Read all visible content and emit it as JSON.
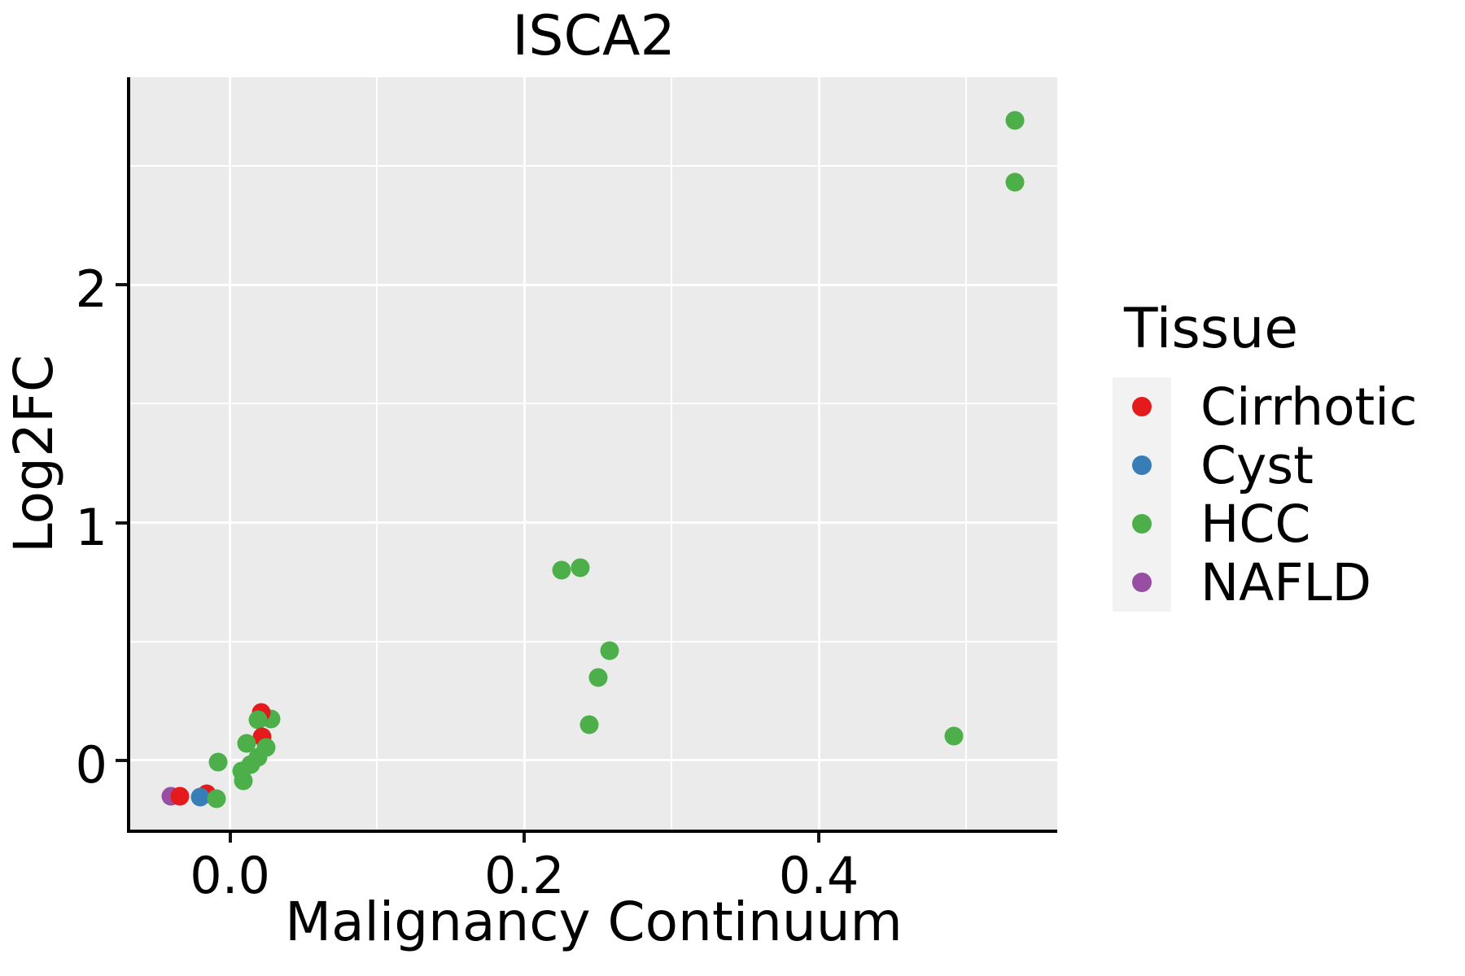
{
  "figure": {
    "title": "ISCA2"
  },
  "axes": {
    "x": {
      "label": "Malignancy Continuum",
      "min": -0.0678,
      "max": 0.562,
      "major_ticks": [
        {
          "value": 0.0,
          "label": "0.0"
        },
        {
          "value": 0.2,
          "label": "0.2"
        },
        {
          "value": 0.4,
          "label": "0.4"
        }
      ],
      "minor_gridlines": [
        0.1,
        0.3,
        0.5
      ]
    },
    "y": {
      "label": "Log2FC",
      "min": -0.2906,
      "max": 2.8718,
      "major_ticks": [
        {
          "value": 0,
          "label": "0"
        },
        {
          "value": 1,
          "label": "1"
        },
        {
          "value": 2,
          "label": "2"
        }
      ],
      "minor_gridlines": [
        0.5,
        1.5,
        2.5
      ]
    }
  },
  "legend": {
    "title": "Tissue",
    "entries": [
      {
        "label": "Cirrhotic",
        "color": "#E41A1C"
      },
      {
        "label": "Cyst",
        "color": "#377EB8"
      },
      {
        "label": "HCC",
        "color": "#4DAF4A"
      },
      {
        "label": "NAFLD",
        "color": "#984EA3"
      }
    ]
  },
  "style_colors": {
    "panel_background": "#EBEBEB",
    "gridline": "#FFFFFF",
    "legend_key_background": "#F2F2F2",
    "axis_line": "#000000"
  },
  "chart_data": {
    "type": "scatter",
    "title": "ISCA2",
    "xlabel": "Malignancy Continuum",
    "ylabel": "Log2FC",
    "xlim": [
      -0.0678,
      0.562
    ],
    "ylim": [
      -0.2906,
      2.8718
    ],
    "grid": "major-and-minor-white-on-gray",
    "legend_position": "right",
    "series_legend": [
      "Cirrhotic",
      "Cyst",
      "HCC",
      "NAFLD"
    ],
    "points": [
      {
        "tissue": "NAFLD",
        "x": -0.04,
        "y": -0.152
      },
      {
        "tissue": "Cirrhotic",
        "x": -0.034,
        "y": -0.152
      },
      {
        "tissue": "Cirrhotic",
        "x": -0.016,
        "y": -0.14
      },
      {
        "tissue": "Cyst",
        "x": -0.0205,
        "y": -0.155
      },
      {
        "tissue": "HCC",
        "x": -0.009,
        "y": -0.16
      },
      {
        "tissue": "HCC",
        "x": -0.008,
        "y": -0.007
      },
      {
        "tissue": "HCC",
        "x": 0.028,
        "y": 0.175
      },
      {
        "tissue": "Cirrhotic",
        "x": 0.021,
        "y": 0.202
      },
      {
        "tissue": "HCC",
        "x": 0.019,
        "y": 0.17
      },
      {
        "tissue": "Cirrhotic",
        "x": 0.0215,
        "y": 0.1
      },
      {
        "tissue": "HCC",
        "x": 0.011,
        "y": 0.072
      },
      {
        "tissue": "HCC",
        "x": 0.0245,
        "y": 0.055
      },
      {
        "tissue": "HCC",
        "x": 0.019,
        "y": 0.015
      },
      {
        "tissue": "HCC",
        "x": 0.014,
        "y": -0.017
      },
      {
        "tissue": "HCC",
        "x": 0.008,
        "y": -0.045
      },
      {
        "tissue": "HCC",
        "x": 0.009,
        "y": -0.085
      },
      {
        "tissue": "HCC",
        "x": 0.225,
        "y": 0.8
      },
      {
        "tissue": "HCC",
        "x": 0.238,
        "y": 0.81
      },
      {
        "tissue": "HCC",
        "x": 0.258,
        "y": 0.46
      },
      {
        "tissue": "HCC",
        "x": 0.25,
        "y": 0.35
      },
      {
        "tissue": "HCC",
        "x": 0.244,
        "y": 0.15
      },
      {
        "tissue": "HCC",
        "x": 0.492,
        "y": 0.103
      },
      {
        "tissue": "HCC",
        "x": 0.533,
        "y": 2.69
      },
      {
        "tissue": "HCC",
        "x": 0.533,
        "y": 2.43
      }
    ]
  }
}
